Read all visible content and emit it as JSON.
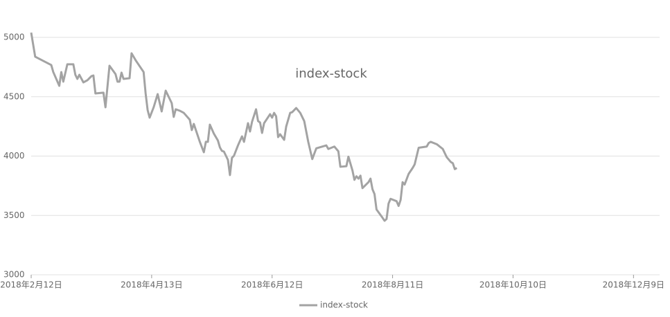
{
  "chart_data": {
    "type": "line",
    "title": "index-stock",
    "x": [
      "2018-02-12",
      "2018-02-14",
      "2018-02-22",
      "2018-02-23",
      "2018-02-26",
      "2018-02-27",
      "2018-02-28",
      "2018-03-02",
      "2018-03-05",
      "2018-03-06",
      "2018-03-07",
      "2018-03-08",
      "2018-03-10",
      "2018-03-12",
      "2018-03-14",
      "2018-03-15",
      "2018-03-16",
      "2018-03-20",
      "2018-03-21",
      "2018-03-23",
      "2018-03-26",
      "2018-03-27",
      "2018-03-28",
      "2018-03-29",
      "2018-03-30",
      "2018-04-02",
      "2018-04-03",
      "2018-04-05",
      "2018-04-09",
      "2018-04-10",
      "2018-04-11",
      "2018-04-12",
      "2018-04-14",
      "2018-04-16",
      "2018-04-18",
      "2018-04-20",
      "2018-04-23",
      "2018-04-24",
      "2018-04-25",
      "2018-04-27",
      "2018-04-29",
      "2018-05-02",
      "2018-05-03",
      "2018-05-04",
      "2018-05-07",
      "2018-05-09",
      "2018-05-10",
      "2018-05-11",
      "2018-05-12",
      "2018-05-14",
      "2018-05-16",
      "2018-05-17",
      "2018-05-18",
      "2018-05-19",
      "2018-05-21",
      "2018-05-22",
      "2018-05-23",
      "2018-05-24",
      "2018-05-26",
      "2018-05-28",
      "2018-05-29",
      "2018-05-31",
      "2018-06-01",
      "2018-06-02",
      "2018-06-04",
      "2018-06-05",
      "2018-06-06",
      "2018-06-07",
      "2018-06-08",
      "2018-06-11",
      "2018-06-12",
      "2018-06-13",
      "2018-06-14",
      "2018-06-15",
      "2018-06-16",
      "2018-06-18",
      "2018-06-19",
      "2018-06-21",
      "2018-06-22",
      "2018-06-24",
      "2018-06-26",
      "2018-06-28",
      "2018-06-30",
      "2018-07-02",
      "2018-07-04",
      "2018-07-09",
      "2018-07-10",
      "2018-07-13",
      "2018-07-15",
      "2018-07-16",
      "2018-07-19",
      "2018-07-20",
      "2018-07-22",
      "2018-07-23",
      "2018-07-24",
      "2018-07-25",
      "2018-07-26",
      "2018-07-27",
      "2018-07-30",
      "2018-07-31",
      "2018-08-01",
      "2018-08-02",
      "2018-08-03",
      "2018-08-06",
      "2018-08-07",
      "2018-08-08",
      "2018-08-09",
      "2018-08-10",
      "2018-08-13",
      "2018-08-14",
      "2018-08-15",
      "2018-08-16",
      "2018-08-17",
      "2018-08-19",
      "2018-08-21",
      "2018-08-22",
      "2018-08-24",
      "2018-08-28",
      "2018-08-29",
      "2018-08-30",
      "2018-09-02",
      "2018-09-05",
      "2018-09-07",
      "2018-09-09",
      "2018-09-10",
      "2018-09-11",
      "2018-09-12"
    ],
    "series": [
      {
        "name": "index-stock",
        "color": "#a3a3a3",
        "values": [
          5040,
          4837,
          4767,
          4708,
          4592,
          4708,
          4627,
          4773,
          4773,
          4685,
          4650,
          4685,
          4621,
          4639,
          4673,
          4679,
          4528,
          4534,
          4411,
          4761,
          4691,
          4627,
          4627,
          4703,
          4650,
          4656,
          4866,
          4808,
          4708,
          4528,
          4388,
          4324,
          4411,
          4522,
          4376,
          4551,
          4446,
          4330,
          4394,
          4382,
          4364,
          4306,
          4219,
          4271,
          4120,
          4032,
          4120,
          4120,
          4265,
          4189,
          4131,
          4073,
          4044,
          4038,
          3968,
          3840,
          3985,
          4003,
          4090,
          4166,
          4120,
          4277,
          4207,
          4289,
          4394,
          4295,
          4283,
          4195,
          4277,
          4353,
          4324,
          4364,
          4335,
          4160,
          4184,
          4137,
          4248,
          4364,
          4370,
          4405,
          4364,
          4295,
          4120,
          3975,
          4065,
          4090,
          4060,
          4080,
          4040,
          3910,
          3915,
          3995,
          3880,
          3800,
          3830,
          3810,
          3835,
          3730,
          3780,
          3810,
          3720,
          3680,
          3550,
          3480,
          3455,
          3470,
          3600,
          3640,
          3620,
          3580,
          3630,
          3780,
          3760,
          3850,
          3900,
          3930,
          4070,
          4080,
          4110,
          4120,
          4100,
          4060,
          3990,
          3950,
          3940,
          3890,
          3900
        ]
      }
    ],
    "xlim": [
      "2018-02-12",
      "2018-12-22"
    ],
    "xticks": [
      {
        "value": "2018-02-12",
        "label": "2018年2月12日"
      },
      {
        "value": "2018-04-13",
        "label": "2018年4月13日"
      },
      {
        "value": "2018-06-12",
        "label": "2018年6月12日"
      },
      {
        "value": "2018-08-11",
        "label": "2018年8月11日"
      },
      {
        "value": "2018-10-10",
        "label": "2018年10月10日"
      },
      {
        "value": "2018-12-09",
        "label": "2018年12月9日"
      }
    ],
    "ylim": [
      3000,
      5000
    ],
    "yticks": [
      3000,
      3500,
      4000,
      4500,
      5000
    ],
    "grid": true
  }
}
